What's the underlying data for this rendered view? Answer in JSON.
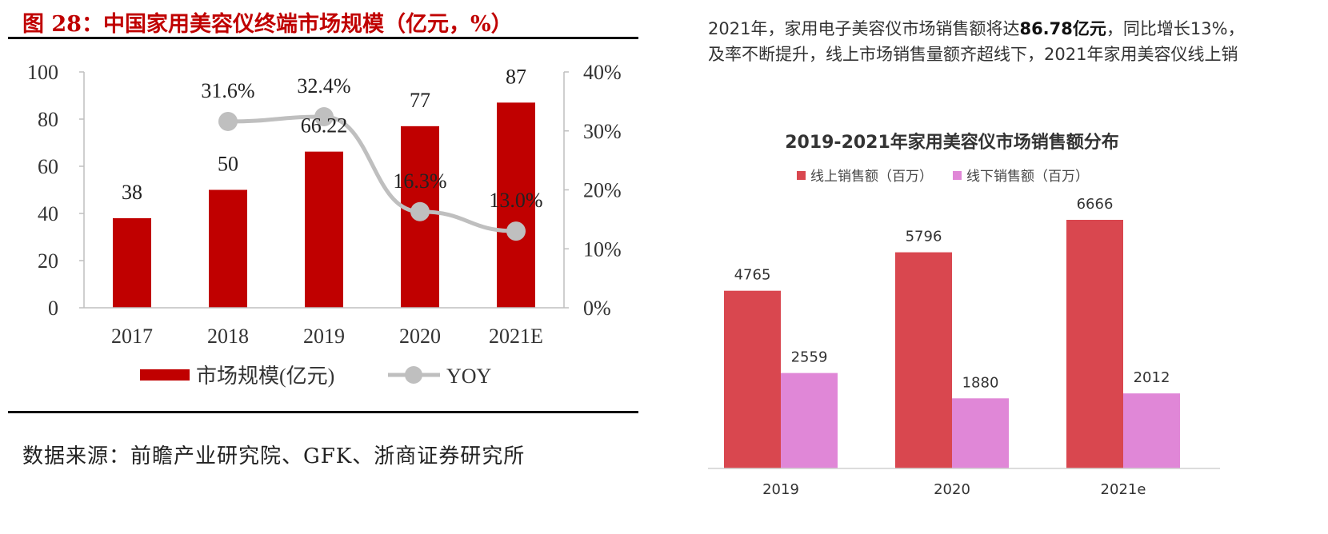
{
  "left": {
    "figure_title": "图 28：中国家用美容仪终端市场规模（亿元，%）",
    "source": "数据来源：前瞻产业研究院、GFK、浙商证券研究所",
    "colors": {
      "bar": "#c00000",
      "line": "#bfbfbf",
      "title": "#c00000"
    }
  },
  "right": {
    "intro_line1_a": "2021年，家用电子美容仪市场销售额将达",
    "intro_line1_bold": "86.78亿元",
    "intro_line1_b": "，同比增长13%，",
    "intro_line2": "及率不断提升，线上市场销售量额齐超线下，2021年家用美容仪线上销",
    "colors": {
      "online": "#d9474f",
      "offline": "#e087d7"
    }
  },
  "chart_data": [
    {
      "type": "bar",
      "categories": [
        "2017",
        "2018",
        "2019",
        "2020",
        "2021E"
      ],
      "series": [
        {
          "name": "市场规模(亿元)",
          "axis": "left",
          "values": [
            38,
            50,
            66.22,
            77,
            87
          ],
          "labels": [
            "38",
            "50",
            "66.22",
            "77",
            "87"
          ]
        },
        {
          "name": "YOY",
          "type": "line",
          "axis": "right",
          "values": [
            null,
            31.6,
            32.4,
            16.3,
            13.0
          ],
          "labels": [
            "",
            "31.6%",
            "32.4%",
            "16.3%",
            "13.0%"
          ]
        }
      ],
      "ylim": [
        0,
        100
      ],
      "y2lim": [
        0,
        40
      ],
      "yticks": [
        "0",
        "20",
        "40",
        "60",
        "80",
        "100"
      ],
      "y2ticks": [
        "0%",
        "10%",
        "20%",
        "30%",
        "40%"
      ],
      "legend_position": "bottom"
    },
    {
      "type": "bar",
      "title": "2019-2021年家用美容仪市场销售额分布",
      "categories": [
        "2019",
        "2020",
        "2021e"
      ],
      "series": [
        {
          "name": "线上销售额（百万）",
          "values": [
            4765,
            5796,
            6666
          ]
        },
        {
          "name": "线下销售额（百万）",
          "values": [
            2559,
            1880,
            2012
          ]
        }
      ],
      "ylim": [
        0,
        7000
      ],
      "legend_position": "top"
    }
  ]
}
